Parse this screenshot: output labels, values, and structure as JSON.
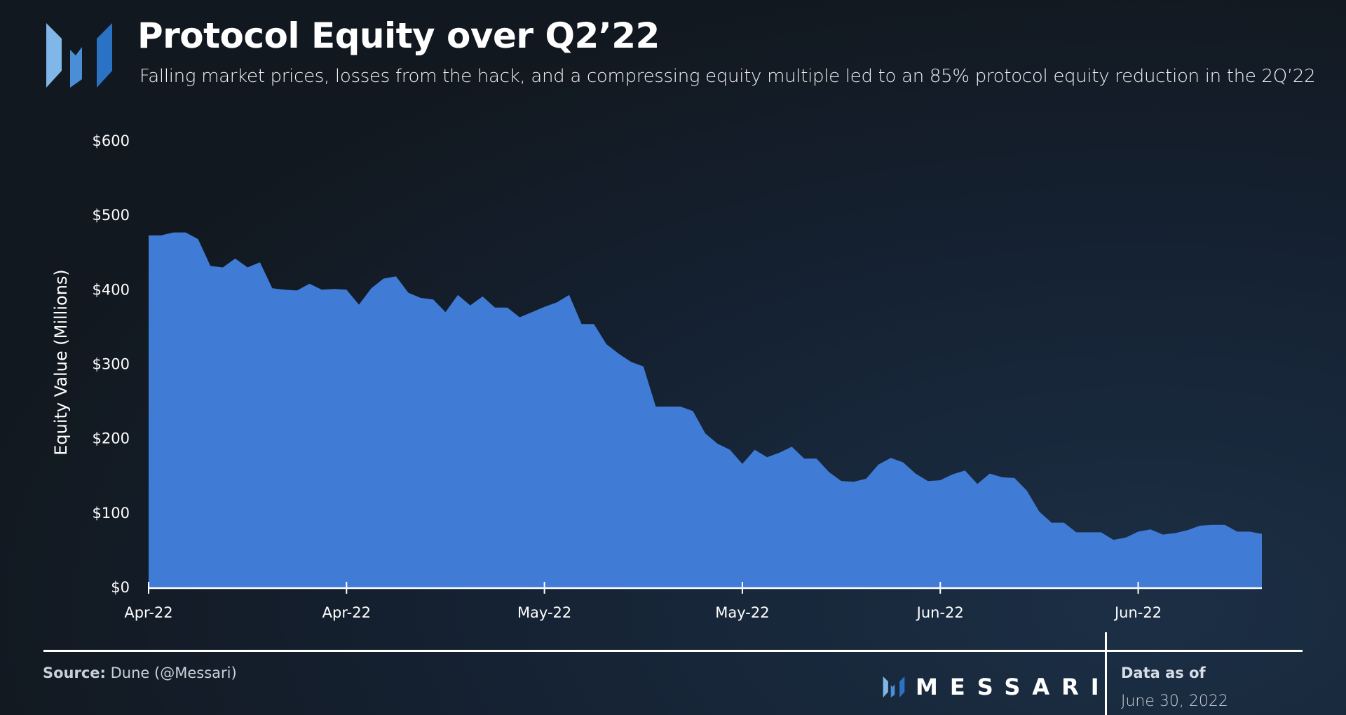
{
  "header": {
    "title": "Protocol Equity over Q2’22",
    "subtitle": "Falling market prices, losses from the hack, and a compressing equity multiple led to an 85% protocol equity reduction in the 2Q’22",
    "logo_icon": "messari-m-logo-icon"
  },
  "footer": {
    "source_label": "Source:",
    "source_value": "Dune (@Messari)",
    "brand": "MESSARI",
    "data_as_of_label": "Data as of",
    "data_as_of_date": "June 30, 2022"
  },
  "colors": {
    "area": "#407bd6",
    "axis": "#ffffff"
  },
  "chart_data": {
    "type": "area",
    "title": "Protocol Equity over Q2’22",
    "xlabel": "",
    "ylabel": "Equity Value (Millions)",
    "ylim": [
      0,
      600
    ],
    "yticks": [
      0,
      100,
      200,
      300,
      400,
      500,
      600
    ],
    "ytick_labels": [
      "$0",
      "$100",
      "$200",
      "$300",
      "$400",
      "$500",
      "$600"
    ],
    "xticks": [
      0,
      16,
      32,
      48,
      64,
      80
    ],
    "xtick_labels": [
      "Apr-22",
      "Apr-22",
      "May-22",
      "May-22",
      "Jun-22",
      "Jun-22"
    ],
    "grid": false,
    "series": [
      {
        "name": "Protocol Equity",
        "values": [
          473,
          473,
          477,
          477,
          468,
          432,
          430,
          442,
          430,
          437,
          402,
          400,
          399,
          408,
          400,
          401,
          400,
          380,
          402,
          415,
          418,
          396,
          389,
          387,
          370,
          393,
          379,
          391,
          376,
          376,
          363,
          370,
          377,
          383,
          393,
          354,
          354,
          327,
          314,
          303,
          297,
          243,
          243,
          243,
          237,
          207,
          193,
          185,
          166,
          185,
          175,
          181,
          189,
          173,
          173,
          155,
          143,
          142,
          146,
          165,
          174,
          168,
          153,
          143,
          144,
          152,
          157,
          139,
          153,
          148,
          147,
          130,
          102,
          87,
          87,
          74,
          74,
          74,
          64,
          67,
          75,
          78,
          71,
          73,
          77,
          83,
          84,
          84,
          75,
          75,
          72
        ]
      }
    ]
  }
}
